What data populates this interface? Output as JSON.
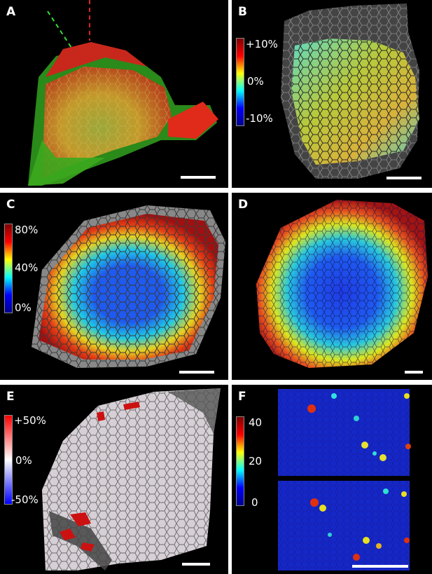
{
  "panels": {
    "a": {
      "label": "A"
    },
    "b": {
      "label": "B",
      "colorbar": [
        "+10%",
        "0%",
        "-10%"
      ]
    },
    "c": {
      "label": "C",
      "colorbar": [
        "80%",
        "40%",
        "0%"
      ]
    },
    "d": {
      "label": "D"
    },
    "e": {
      "label": "E",
      "colorbar": [
        "+50%",
        "0%",
        "-50%"
      ]
    },
    "f": {
      "label": "F",
      "colorbar": [
        "40",
        "20",
        "0"
      ]
    }
  },
  "colors": {
    "jet": [
      "#00008f",
      "#0000ff",
      "#00ffff",
      "#ffff00",
      "#ff0000",
      "#800000"
    ],
    "diverging": [
      "#0000ff",
      "#ffffff",
      "#ff0000"
    ]
  }
}
